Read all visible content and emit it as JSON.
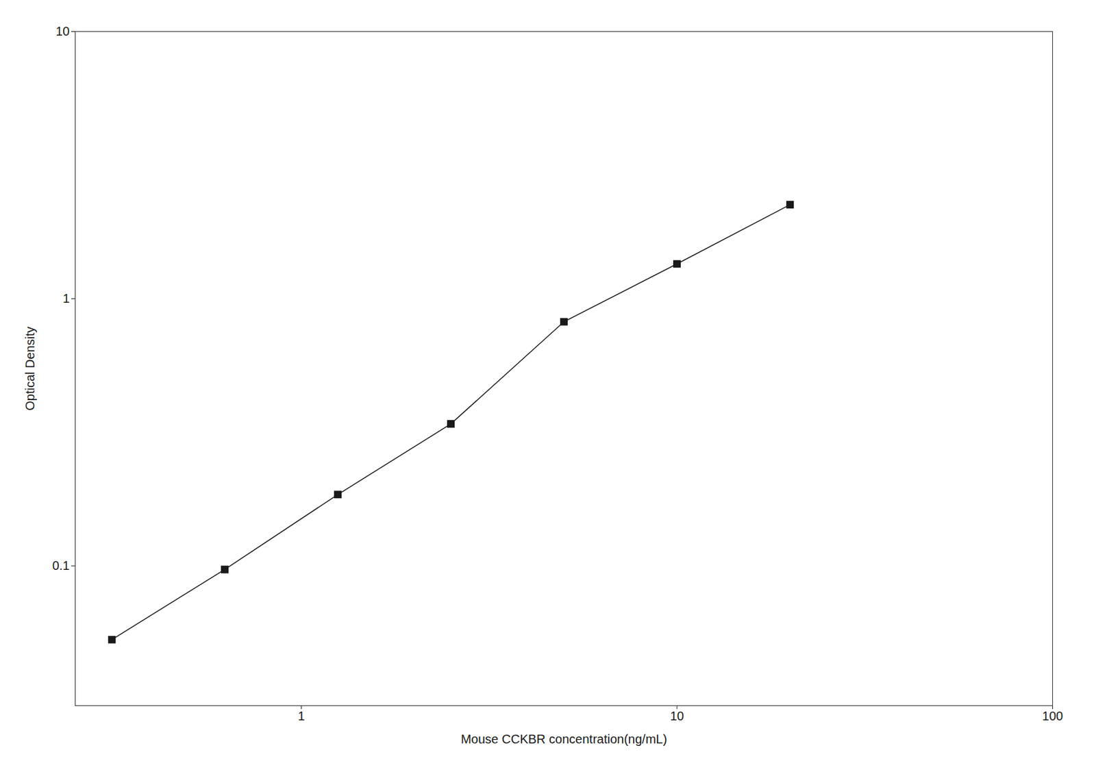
{
  "chart_data": {
    "type": "line",
    "x": [
      0.313,
      0.625,
      1.25,
      2.5,
      5.0,
      10.0,
      20.0
    ],
    "values": [
      0.053,
      0.097,
      0.185,
      0.34,
      0.82,
      1.35,
      2.25
    ],
    "xlabel": "Mouse CCKBR concentration(ng/mL)",
    "ylabel": "Optical Density",
    "xlim": [
      0.25,
      100
    ],
    "ylim": [
      0.03,
      10
    ],
    "xticks": [
      1,
      10,
      100
    ],
    "yticks": [
      0.1,
      1,
      10
    ],
    "log": true,
    "grid": false,
    "color": "#1a1a1a",
    "marker": "square",
    "line_style": "solid"
  }
}
